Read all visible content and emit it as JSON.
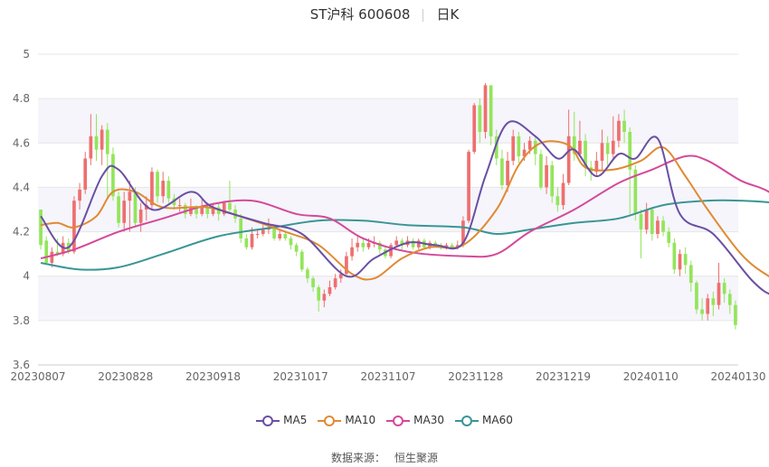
{
  "header": {
    "title": "ST沪科 600608",
    "period": "日K"
  },
  "footer": {
    "source_label": "数据来源：",
    "source_name": "恒生聚源"
  },
  "colors": {
    "up": "#ee6f6f",
    "down": "#93e55b",
    "ma5": "#6a4fa3",
    "ma10": "#e08a34",
    "ma30": "#d5489a",
    "ma60": "#3a9595",
    "grid": "#e6e6e6",
    "band": "#f5f5fb"
  },
  "chart_data": {
    "type": "candlestick",
    "ylim": [
      3.6,
      5.0
    ],
    "yticks": [
      "3.6",
      "3.8",
      "4",
      "4.2",
      "4.4",
      "4.6",
      "4.8",
      "5"
    ],
    "xtick_labels": [
      "20230807",
      "20230828",
      "20230918",
      "20231017",
      "20231107",
      "20231128",
      "20231219",
      "20240110",
      "20240130"
    ],
    "legend": [
      "MA5",
      "MA10",
      "MA30",
      "MA60"
    ],
    "candles": [
      [
        4.3,
        4.14,
        4.3,
        4.12
      ],
      [
        4.16,
        4.06,
        4.18,
        4.05
      ],
      [
        4.06,
        4.11,
        4.13,
        4.04
      ],
      [
        4.11,
        4.1,
        4.17,
        4.09
      ],
      [
        4.1,
        4.15,
        4.18,
        4.09
      ],
      [
        4.15,
        4.11,
        4.17,
        4.1
      ],
      [
        4.11,
        4.34,
        4.36,
        4.1
      ],
      [
        4.34,
        4.39,
        4.42,
        4.3
      ],
      [
        4.39,
        4.53,
        4.56,
        4.37
      ],
      [
        4.53,
        4.63,
        4.73,
        4.5
      ],
      [
        4.63,
        4.57,
        4.73,
        4.52
      ],
      [
        4.57,
        4.66,
        4.68,
        4.5
      ],
      [
        4.66,
        4.55,
        4.69,
        4.35
      ],
      [
        4.55,
        4.36,
        4.58,
        4.34
      ],
      [
        4.36,
        4.24,
        4.38,
        4.22
      ],
      [
        4.24,
        4.34,
        4.38,
        4.2
      ],
      [
        4.34,
        4.38,
        4.43,
        4.2
      ],
      [
        4.38,
        4.24,
        4.4,
        4.22
      ],
      [
        4.24,
        4.3,
        4.33,
        4.2
      ],
      [
        4.3,
        4.32,
        4.36,
        4.25
      ],
      [
        4.32,
        4.47,
        4.49,
        4.3
      ],
      [
        4.47,
        4.36,
        4.48,
        4.33
      ],
      [
        4.36,
        4.43,
        4.47,
        4.33
      ],
      [
        4.43,
        4.35,
        4.45,
        4.33
      ],
      [
        4.35,
        4.32,
        4.37,
        4.3
      ],
      [
        4.32,
        4.32,
        4.35,
        4.29
      ],
      [
        4.32,
        4.28,
        4.33,
        4.26
      ],
      [
        4.28,
        4.31,
        4.35,
        4.27
      ],
      [
        4.31,
        4.28,
        4.32,
        4.26
      ],
      [
        4.28,
        4.31,
        4.35,
        4.27
      ],
      [
        4.31,
        4.28,
        4.33,
        4.26
      ],
      [
        4.28,
        4.31,
        4.33,
        4.27
      ],
      [
        4.31,
        4.28,
        4.33,
        4.25
      ],
      [
        4.28,
        4.33,
        4.34,
        4.27
      ],
      [
        4.33,
        4.3,
        4.43,
        4.29
      ],
      [
        4.3,
        4.26,
        4.32,
        4.24
      ],
      [
        4.26,
        4.17,
        4.28,
        4.15
      ],
      [
        4.17,
        4.13,
        4.19,
        4.12
      ],
      [
        4.13,
        4.19,
        4.22,
        4.12
      ],
      [
        4.19,
        4.19,
        4.21,
        4.17
      ],
      [
        4.19,
        4.21,
        4.23,
        4.18
      ],
      [
        4.21,
        4.22,
        4.26,
        4.19
      ],
      [
        4.22,
        4.17,
        4.23,
        4.16
      ],
      [
        4.17,
        4.19,
        4.21,
        4.16
      ],
      [
        4.19,
        4.17,
        4.2,
        4.16
      ],
      [
        4.17,
        4.14,
        4.18,
        4.12
      ],
      [
        4.14,
        4.11,
        4.15,
        4.09
      ],
      [
        4.11,
        4.03,
        4.12,
        4.02
      ],
      [
        4.03,
        3.99,
        4.04,
        3.97
      ],
      [
        3.99,
        3.95,
        4.0,
        3.93
      ],
      [
        3.95,
        3.89,
        3.96,
        3.84
      ],
      [
        3.89,
        3.92,
        3.94,
        3.86
      ],
      [
        3.92,
        3.95,
        3.98,
        3.91
      ],
      [
        3.95,
        3.99,
        4.01,
        3.94
      ],
      [
        3.99,
        4.01,
        4.03,
        3.97
      ],
      [
        4.01,
        4.09,
        4.11,
        4.0
      ],
      [
        4.09,
        4.13,
        4.17,
        4.07
      ],
      [
        4.13,
        4.15,
        4.18,
        4.11
      ],
      [
        4.15,
        4.13,
        4.17,
        4.11
      ],
      [
        4.13,
        4.15,
        4.17,
        4.12
      ],
      [
        4.15,
        4.15,
        4.18,
        4.13
      ],
      [
        4.15,
        4.12,
        4.16,
        4.1
      ],
      [
        4.12,
        4.09,
        4.13,
        4.08
      ],
      [
        4.09,
        4.14,
        4.15,
        4.08
      ],
      [
        4.14,
        4.16,
        4.18,
        4.13
      ],
      [
        4.16,
        4.14,
        4.17,
        4.12
      ],
      [
        4.14,
        4.16,
        4.18,
        4.13
      ],
      [
        4.16,
        4.13,
        4.17,
        4.12
      ],
      [
        4.13,
        4.16,
        4.17,
        4.12
      ],
      [
        4.16,
        4.13,
        4.17,
        4.12
      ],
      [
        4.13,
        4.15,
        4.16,
        4.12
      ],
      [
        4.15,
        4.14,
        4.16,
        4.13
      ],
      [
        4.14,
        4.13,
        4.15,
        4.12
      ],
      [
        4.13,
        4.14,
        4.15,
        4.12
      ],
      [
        4.14,
        4.13,
        4.15,
        4.12
      ],
      [
        4.13,
        4.14,
        4.16,
        4.12
      ],
      [
        4.14,
        4.25,
        4.27,
        4.13
      ],
      [
        4.25,
        4.56,
        4.57,
        4.24
      ],
      [
        4.56,
        4.77,
        4.78,
        4.55
      ],
      [
        4.77,
        4.65,
        4.8,
        4.6
      ],
      [
        4.65,
        4.86,
        4.87,
        4.62
      ],
      [
        4.86,
        4.63,
        4.86,
        4.59
      ],
      [
        4.63,
        4.53,
        4.66,
        4.5
      ],
      [
        4.53,
        4.41,
        4.57,
        4.39
      ],
      [
        4.41,
        4.52,
        4.56,
        4.38
      ],
      [
        4.52,
        4.63,
        4.66,
        4.5
      ],
      [
        4.63,
        4.54,
        4.65,
        4.51
      ],
      [
        4.54,
        4.57,
        4.6,
        4.52
      ],
      [
        4.57,
        4.61,
        4.63,
        4.55
      ],
      [
        4.61,
        4.55,
        4.63,
        4.5
      ],
      [
        4.55,
        4.4,
        4.57,
        4.39
      ],
      [
        4.4,
        4.5,
        4.54,
        4.37
      ],
      [
        4.5,
        4.36,
        4.52,
        4.33
      ],
      [
        4.36,
        4.32,
        4.4,
        4.29
      ],
      [
        4.32,
        4.42,
        4.46,
        4.3
      ],
      [
        4.42,
        4.63,
        4.75,
        4.41
      ],
      [
        4.63,
        4.55,
        4.74,
        4.52
      ],
      [
        4.55,
        4.61,
        4.7,
        4.54
      ],
      [
        4.61,
        4.49,
        4.64,
        4.45
      ],
      [
        4.49,
        4.47,
        4.52,
        4.43
      ],
      [
        4.47,
        4.52,
        4.56,
        4.45
      ],
      [
        4.52,
        4.6,
        4.66,
        4.48
      ],
      [
        4.6,
        4.55,
        4.63,
        4.5
      ],
      [
        4.55,
        4.61,
        4.72,
        4.53
      ],
      [
        4.61,
        4.7,
        4.73,
        4.58
      ],
      [
        4.7,
        4.65,
        4.75,
        4.6
      ],
      [
        4.65,
        4.48,
        4.67,
        4.28
      ],
      [
        4.48,
        4.28,
        4.5,
        4.25
      ],
      [
        4.28,
        4.21,
        4.3,
        4.08
      ],
      [
        4.21,
        4.3,
        4.33,
        4.19
      ],
      [
        4.3,
        4.19,
        4.31,
        4.16
      ],
      [
        4.19,
        4.25,
        4.27,
        4.17
      ],
      [
        4.25,
        4.2,
        4.27,
        4.18
      ],
      [
        4.2,
        4.15,
        4.22,
        4.13
      ],
      [
        4.15,
        4.03,
        4.17,
        4.01
      ],
      [
        4.03,
        4.1,
        4.12,
        4.0
      ],
      [
        4.1,
        4.05,
        4.13,
        4.01
      ],
      [
        4.05,
        3.97,
        4.07,
        3.93
      ],
      [
        3.97,
        3.85,
        3.98,
        3.83
      ],
      [
        3.85,
        3.83,
        3.9,
        3.8
      ],
      [
        3.83,
        3.9,
        3.92,
        3.8
      ],
      [
        3.9,
        3.87,
        3.93,
        3.82
      ],
      [
        3.87,
        3.97,
        4.06,
        3.85
      ],
      [
        3.97,
        3.92,
        3.99,
        3.88
      ],
      [
        3.92,
        3.87,
        3.94,
        3.83
      ],
      [
        3.87,
        3.78,
        3.89,
        3.76
      ]
    ],
    "series": [
      {
        "name": "MA5",
        "values": [
          [
            0,
            4.27
          ],
          [
            5,
            4.13
          ],
          [
            11,
            4.45
          ],
          [
            14,
            4.48
          ],
          [
            20,
            4.3
          ],
          [
            27,
            4.38
          ],
          [
            31,
            4.31
          ],
          [
            40,
            4.24
          ],
          [
            47,
            4.19
          ],
          [
            55,
            4.0
          ],
          [
            60,
            4.08
          ],
          [
            66,
            4.15
          ],
          [
            71,
            4.14
          ],
          [
            76,
            4.15
          ],
          [
            80,
            4.45
          ],
          [
            84,
            4.69
          ],
          [
            89,
            4.63
          ],
          [
            93,
            4.53
          ],
          [
            96,
            4.57
          ],
          [
            100,
            4.45
          ],
          [
            104,
            4.55
          ],
          [
            107,
            4.53
          ],
          [
            111,
            4.62
          ],
          [
            115,
            4.28
          ],
          [
            121,
            4.19
          ],
          [
            128,
            3.98
          ],
          [
            132,
            3.91
          ],
          [
            137,
            3.89
          ]
        ]
      },
      {
        "name": "MA10",
        "values": [
          [
            0,
            4.23
          ],
          [
            3,
            4.24
          ],
          [
            6,
            4.22
          ],
          [
            10,
            4.27
          ],
          [
            13,
            4.38
          ],
          [
            17,
            4.38
          ],
          [
            22,
            4.31
          ],
          [
            30,
            4.31
          ],
          [
            37,
            4.26
          ],
          [
            44,
            4.2
          ],
          [
            50,
            4.14
          ],
          [
            56,
            4.01
          ],
          [
            60,
            3.99
          ],
          [
            65,
            4.08
          ],
          [
            70,
            4.13
          ],
          [
            76,
            4.14
          ],
          [
            82,
            4.3
          ],
          [
            86,
            4.5
          ],
          [
            90,
            4.6
          ],
          [
            95,
            4.59
          ],
          [
            98,
            4.49
          ],
          [
            103,
            4.48
          ],
          [
            108,
            4.52
          ],
          [
            112,
            4.58
          ],
          [
            116,
            4.45
          ],
          [
            120,
            4.3
          ],
          [
            126,
            4.1
          ],
          [
            131,
            4.0
          ],
          [
            137,
            3.93
          ]
        ]
      },
      {
        "name": "MA30",
        "values": [
          [
            0,
            4.08
          ],
          [
            6,
            4.12
          ],
          [
            14,
            4.2
          ],
          [
            22,
            4.26
          ],
          [
            30,
            4.32
          ],
          [
            38,
            4.34
          ],
          [
            46,
            4.28
          ],
          [
            52,
            4.26
          ],
          [
            58,
            4.17
          ],
          [
            66,
            4.11
          ],
          [
            76,
            4.09
          ],
          [
            82,
            4.1
          ],
          [
            88,
            4.2
          ],
          [
            96,
            4.3
          ],
          [
            104,
            4.42
          ],
          [
            110,
            4.48
          ],
          [
            116,
            4.54
          ],
          [
            120,
            4.52
          ],
          [
            126,
            4.43
          ],
          [
            131,
            4.38
          ],
          [
            137,
            4.26
          ]
        ]
      },
      {
        "name": "MA60",
        "values": [
          [
            0,
            4.06
          ],
          [
            7,
            4.03
          ],
          [
            14,
            4.04
          ],
          [
            22,
            4.1
          ],
          [
            32,
            4.18
          ],
          [
            42,
            4.22
          ],
          [
            50,
            4.25
          ],
          [
            58,
            4.25
          ],
          [
            66,
            4.23
          ],
          [
            76,
            4.22
          ],
          [
            82,
            4.19
          ],
          [
            88,
            4.21
          ],
          [
            96,
            4.24
          ],
          [
            104,
            4.26
          ],
          [
            112,
            4.32
          ],
          [
            120,
            4.34
          ],
          [
            126,
            4.34
          ],
          [
            132,
            4.33
          ],
          [
            137,
            4.31
          ]
        ]
      }
    ]
  }
}
